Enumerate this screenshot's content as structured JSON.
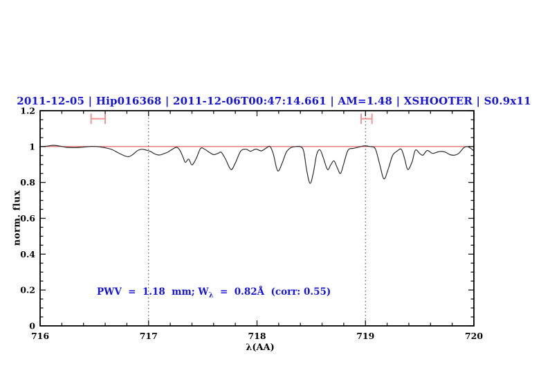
{
  "header": {
    "title": "2011-12-05 | Hip016368 | 2011-12-06T00:47:14.661 | AM=1.48 | XSHOOTER | S0.9x11",
    "title_color": "#1414dd"
  },
  "annotation": {
    "pre": "PWV  =  1.18  mm; W",
    "sub": "λ",
    "post": "  =  0.82Å  (corr: 0.55)",
    "full_text": "PWV = 1.18 mm; Wλ = 0.82Å (corr: 0.55)",
    "color": "#1414dd"
  },
  "axes": {
    "xlabel": "λ(AA)",
    "ylabel": "norm. flux"
  },
  "chart_data": {
    "type": "line",
    "title": "2011-12-05 | Hip016368 | 2011-12-06T00:47:14.661 | AM=1.48 | XSHOOTER | S0.9x11",
    "xlabel": "λ(AA)",
    "ylabel": "norm. flux",
    "xlim": [
      716,
      720
    ],
    "ylim": [
      0,
      1.2
    ],
    "x_ticks": [
      716,
      717,
      718,
      719,
      720
    ],
    "x_tick_labels": [
      "716",
      "717",
      "718",
      "719",
      "720"
    ],
    "x_minor_step": 0.2,
    "y_ticks": [
      0,
      0.2,
      0.4,
      0.6,
      0.8,
      1,
      1.2
    ],
    "y_tick_labels": [
      "0",
      "0.2",
      "0.4",
      "0.6",
      "0.8",
      "1",
      "1.2"
    ],
    "y_minor_step": 0.05,
    "grid": "off",
    "legend": "none",
    "vlines": {
      "x": [
        717,
        719
      ],
      "style": "dotted",
      "color": "#333333"
    },
    "continuum_line": {
      "y": 1.0,
      "color": "#dd5555"
    },
    "range_markers": [
      {
        "x_min": 716.47,
        "x_max": 716.6,
        "y": 1.155,
        "cap_halfheight": 0.029,
        "color": "#f09494"
      },
      {
        "x_min": 718.96,
        "x_max": 719.06,
        "y": 1.155,
        "cap_halfheight": 0.029,
        "color": "#f09494"
      }
    ],
    "series": [
      {
        "name": "observed normalized spectrum",
        "color": "#2b2b2b",
        "x": [
          716.0,
          716.06,
          716.12,
          716.18,
          716.24,
          716.32,
          716.4,
          716.47,
          716.54,
          716.6,
          716.66,
          716.72,
          716.78,
          716.82,
          716.86,
          716.9,
          716.94,
          716.98,
          717.02,
          717.06,
          717.1,
          717.14,
          717.18,
          717.22,
          717.26,
          717.29,
          717.32,
          717.34,
          717.37,
          717.4,
          717.44,
          717.48,
          717.52,
          717.56,
          717.6,
          717.64,
          717.67,
          717.71,
          717.76,
          717.8,
          717.85,
          717.9,
          717.94,
          717.99,
          718.04,
          718.09,
          718.12,
          718.15,
          718.19,
          718.23,
          718.27,
          718.31,
          718.36,
          718.4,
          718.43,
          718.46,
          718.49,
          718.52,
          718.55,
          718.58,
          718.61,
          718.65,
          718.68,
          718.71,
          718.74,
          718.77,
          718.8,
          718.84,
          718.89,
          718.94,
          718.99,
          719.04,
          719.09,
          719.13,
          719.17,
          719.21,
          719.25,
          719.29,
          719.33,
          719.36,
          719.39,
          719.43,
          719.46,
          719.5,
          719.53,
          719.57,
          719.62,
          719.68,
          719.73,
          719.78,
          719.82,
          719.86,
          719.91,
          719.95,
          720.0
        ],
        "y": [
          1.0,
          1.002,
          1.007,
          1.003,
          0.996,
          0.994,
          0.997,
          1.001,
          0.999,
          0.993,
          0.984,
          0.965,
          0.948,
          0.944,
          0.958,
          0.978,
          0.985,
          0.98,
          0.972,
          0.958,
          0.953,
          0.96,
          0.97,
          0.985,
          0.996,
          0.978,
          0.938,
          0.912,
          0.93,
          0.898,
          0.934,
          0.99,
          0.984,
          0.968,
          0.955,
          0.962,
          0.968,
          0.93,
          0.872,
          0.908,
          0.975,
          0.985,
          0.974,
          0.986,
          0.976,
          0.994,
          1.0,
          0.96,
          0.865,
          0.905,
          0.968,
          0.993,
          1.0,
          0.999,
          0.975,
          0.862,
          0.795,
          0.855,
          0.955,
          0.982,
          0.94,
          0.872,
          0.898,
          0.92,
          0.882,
          0.85,
          0.905,
          0.98,
          0.99,
          0.997,
          1.004,
          1.0,
          0.988,
          0.905,
          0.82,
          0.875,
          0.95,
          0.974,
          0.985,
          0.935,
          0.872,
          0.915,
          0.98,
          0.962,
          0.952,
          0.978,
          0.962,
          0.972,
          0.97,
          0.955,
          0.952,
          0.962,
          0.995,
          0.998,
          0.976
        ]
      }
    ]
  }
}
